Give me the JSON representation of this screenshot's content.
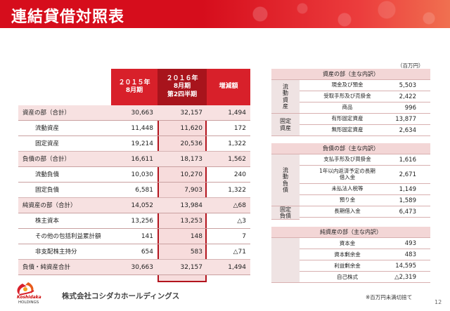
{
  "title": "連結貸借対照表",
  "unit": "（百万円）",
  "left_table": {
    "headers": [
      "２０１５年\n8月期",
      "２０１６年\n8月期\n第2四半期",
      "増減額"
    ],
    "rows": [
      {
        "label": "資産の部（合計）",
        "indent": 0,
        "v2015": "30,663",
        "v2016": "32,157",
        "diff": "1,494"
      },
      {
        "label": "流動資産",
        "indent": 1,
        "v2015": "11,448",
        "v2016": "11,620",
        "diff": "172"
      },
      {
        "label": "固定資産",
        "indent": 1,
        "v2015": "19,214",
        "v2016": "20,536",
        "diff": "1,322"
      },
      {
        "label": "負債の部（合計）",
        "indent": 0,
        "v2015": "16,611",
        "v2016": "18,173",
        "diff": "1,562"
      },
      {
        "label": "流動負債",
        "indent": 1,
        "v2015": "10,030",
        "v2016": "10,270",
        "diff": "240"
      },
      {
        "label": "固定負債",
        "indent": 1,
        "v2015": "6,581",
        "v2016": "7,903",
        "diff": "1,322"
      },
      {
        "label": "純資産の部（合計）",
        "indent": 0,
        "v2015": "14,052",
        "v2016": "13,984",
        "diff": "△68"
      },
      {
        "label": "株主資本",
        "indent": 1,
        "v2015": "13,256",
        "v2016": "13,253",
        "diff": "△3"
      },
      {
        "label": "その他の包括利益累計額",
        "indent": 1,
        "v2015": "141",
        "v2016": "148",
        "diff": "7"
      },
      {
        "label": "非支配株主持分",
        "indent": 1,
        "v2015": "654",
        "v2016": "583",
        "diff": "△71"
      },
      {
        "label": "負債・純資産合計",
        "indent": 0,
        "v2015": "30,663",
        "v2016": "32,157",
        "diff": "1,494"
      }
    ]
  },
  "right_table": {
    "assets": {
      "title": "資産の部（主な内訳）",
      "groups": [
        {
          "label": "流\n動\n資\n産",
          "items": [
            {
              "label": "現金及び預金",
              "value": "5,503"
            },
            {
              "label": "受取手形及び売掛金",
              "value": "2,422"
            },
            {
              "label": "商品",
              "value": "996"
            }
          ]
        },
        {
          "label": "固定\n資産",
          "items": [
            {
              "label": "有形固定資産",
              "value": "13,877"
            },
            {
              "label": "無形固定資産",
              "value": "2,634"
            }
          ]
        }
      ]
    },
    "liabilities": {
      "title": "負債の部（主な内訳）",
      "groups": [
        {
          "label": "流\n動\n負\n債",
          "items": [
            {
              "label": "支払手形及び買掛金",
              "value": "1,616"
            },
            {
              "label": "1年以内返済予定の長期\n借入金",
              "value": "2,671"
            },
            {
              "label": "未払法人税等",
              "value": "1,149"
            },
            {
              "label": "預り金",
              "value": "1,589"
            }
          ]
        },
        {
          "label": "固定\n負債",
          "items": [
            {
              "label": "長期借入金",
              "value": "6,473"
            }
          ]
        }
      ]
    },
    "equity": {
      "title": "純資産の部（主な内訳）",
      "items": [
        {
          "label": "資本金",
          "value": "493"
        },
        {
          "label": "資本剰余金",
          "value": "483"
        },
        {
          "label": "利益剰余金",
          "value": "14,595"
        },
        {
          "label": "自己株式",
          "value": "△2,319"
        }
      ]
    }
  },
  "footnote": "※百万円未満切捨て",
  "footer": {
    "logo_line1": "Koshidaka",
    "logo_line2": "HOLDINGS",
    "company": "株式会社コシダカホールディングス",
    "page": "12"
  },
  "colors": {
    "brand_red": "#d8202a",
    "dark_red": "#a8141c",
    "highlight_pink": "#f7dcdc"
  }
}
